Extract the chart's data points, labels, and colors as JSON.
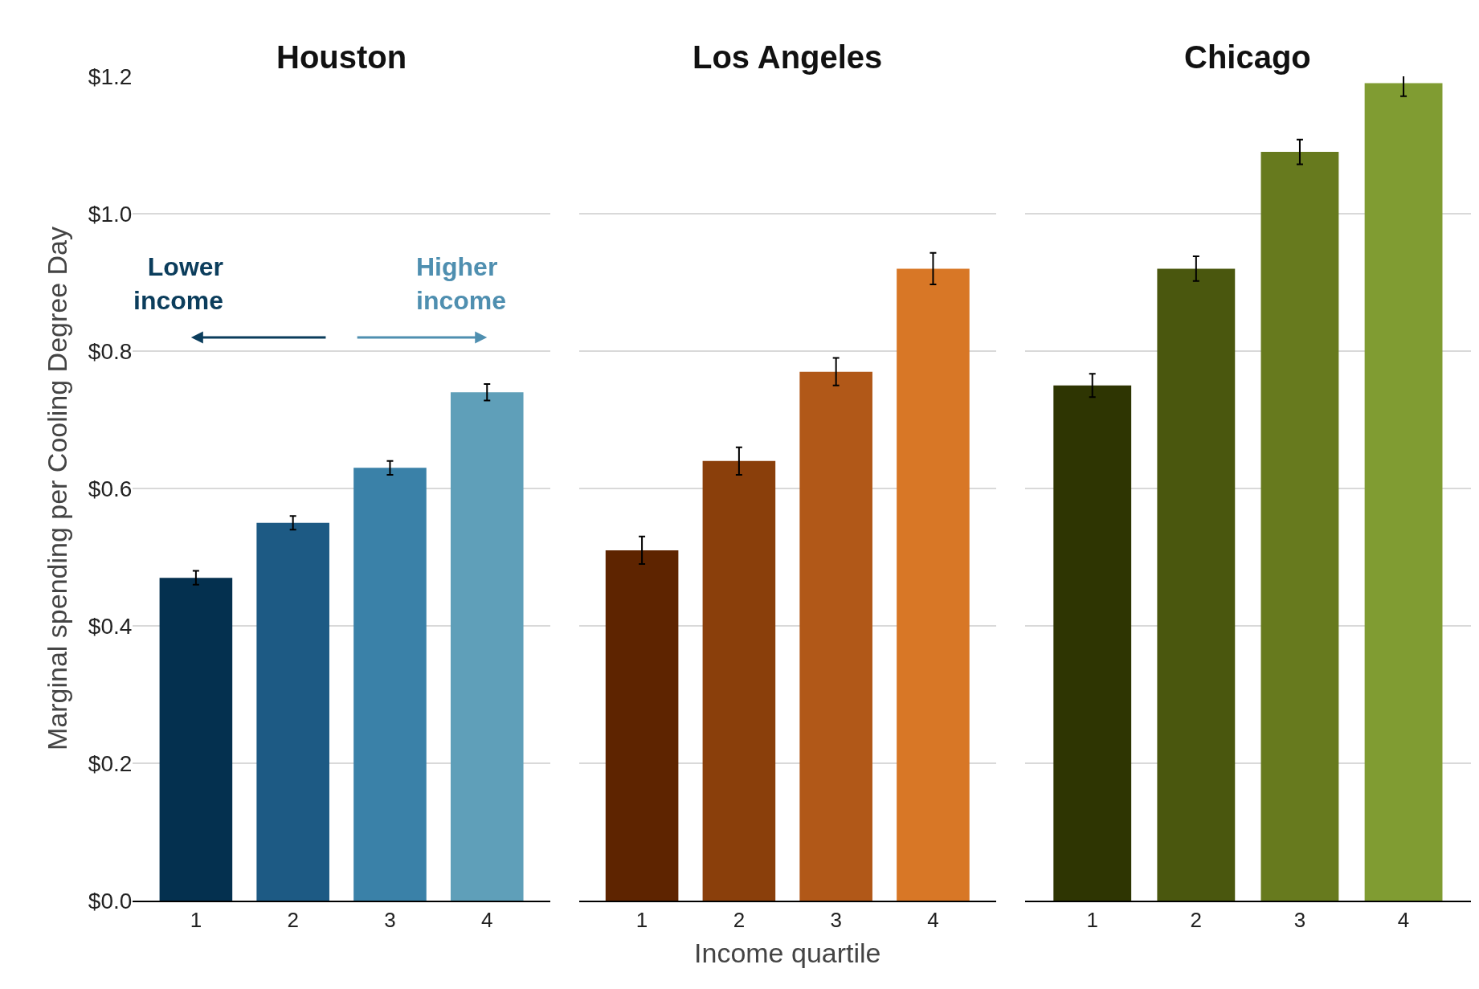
{
  "chart_data": [
    {
      "type": "bar",
      "title": "Houston",
      "ylabel": "Marginal spending per Cooling Degree Day",
      "categories": [
        "1",
        "2",
        "3",
        "4"
      ],
      "values": [
        0.47,
        0.55,
        0.63,
        0.74
      ],
      "errors": [
        0.01,
        0.01,
        0.01,
        0.012
      ],
      "colors": [
        "#04304f",
        "#1d5a84",
        "#3a81a8",
        "#5f9fb9"
      ],
      "ylim": [
        0,
        1.2
      ],
      "yticks": [
        {
          "value": 0,
          "label": "$0.0"
        },
        {
          "value": 0.2,
          "label": "$0.2"
        },
        {
          "value": 0.4,
          "label": "$0.4"
        },
        {
          "value": 0.6,
          "label": "$0.6"
        },
        {
          "value": 0.8,
          "label": "$0.8"
        },
        {
          "value": 1.0,
          "label": "$1.0"
        },
        {
          "value": 1.2,
          "label": "$1.2"
        }
      ],
      "grid": "y",
      "annotations": [
        "Lower\nincome",
        "Higher\nincome"
      ]
    },
    {
      "type": "bar",
      "title": "Los Angeles",
      "xlabel": "Income quartile",
      "categories": [
        "1",
        "2",
        "3",
        "4"
      ],
      "values": [
        0.51,
        0.64,
        0.77,
        0.92
      ],
      "errors": [
        0.02,
        0.02,
        0.02,
        0.023
      ],
      "colors": [
        "#5e2400",
        "#8a3f0b",
        "#b15818",
        "#d87726"
      ],
      "ylim": [
        0,
        1.2
      ],
      "grid": "y",
      "tick_labels": "x"
    },
    {
      "type": "bar",
      "title": "Chicago",
      "categories": [
        "1",
        "2",
        "3",
        "4"
      ],
      "values": [
        0.75,
        0.92,
        1.09,
        1.19
      ],
      "errors": [
        0.017,
        0.018,
        0.018,
        0.019
      ],
      "colors": [
        "#2e3502",
        "#4a570e",
        "#677a1e",
        "#809c32"
      ],
      "ylim": [
        0,
        1.2
      ],
      "grid": "y",
      "tick_labels": "x"
    }
  ]
}
